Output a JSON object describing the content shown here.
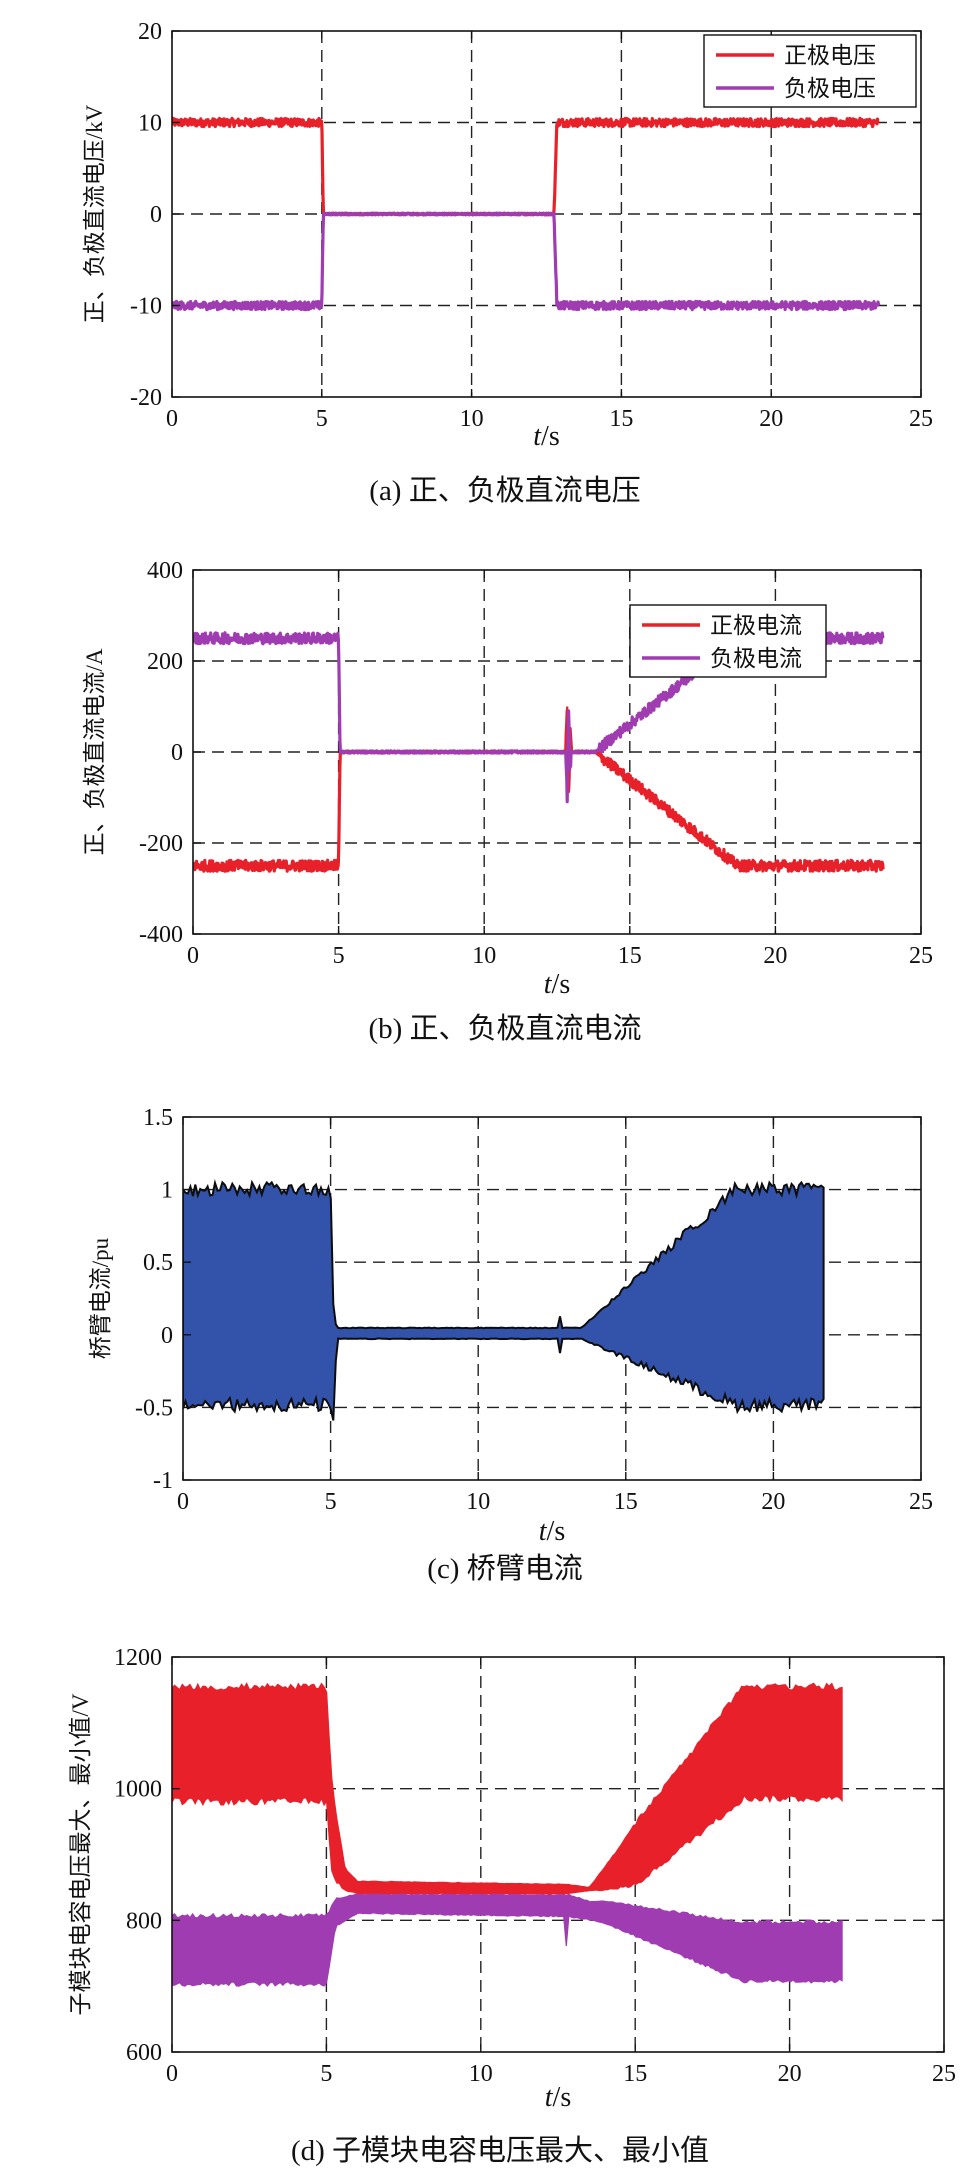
{
  "chart_data": [
    {
      "type": "line",
      "caption": "(a) 正、负极直流电压",
      "ylabel": "正、负极直流电压/kV",
      "xlabel_italic": "t",
      "xlabel_unit": "/s",
      "xlim": [
        0,
        25
      ],
      "ylim": [
        -20,
        20
      ],
      "xticks": [
        "0",
        "5",
        "10",
        "15",
        "20",
        "25"
      ],
      "yticks": [
        "-20",
        "-10",
        "0",
        "10",
        "20"
      ],
      "grid": true,
      "legend_position": "top-right",
      "series": [
        {
          "name": "正极电压",
          "color": "#e8202a",
          "ripple": 0.45,
          "x": [
            0,
            5,
            5.05,
            12.75,
            12.85,
            23.6
          ],
          "y": [
            10,
            10,
            0,
            0,
            10,
            10
          ]
        },
        {
          "name": "负极电压",
          "color": "#a03cb2",
          "ripple": 0.45,
          "x": [
            0,
            5,
            5.05,
            12.75,
            12.85,
            23.6
          ],
          "y": [
            -10,
            -10,
            0,
            0,
            -10,
            -10
          ]
        }
      ]
    },
    {
      "type": "line",
      "caption": "(b) 正、负极直流电流",
      "ylabel": "正、负极直流电流/A",
      "xlabel_italic": "t",
      "xlabel_unit": "/s",
      "xlim": [
        0,
        25
      ],
      "ylim": [
        -400,
        400
      ],
      "xticks": [
        "0",
        "5",
        "10",
        "15",
        "20",
        "25"
      ],
      "yticks": [
        "-400",
        "-200",
        "0",
        "200",
        "400"
      ],
      "grid": true,
      "legend_position": "top-right",
      "series": [
        {
          "name": "正极电流",
          "color": "#e8202a",
          "ripple": 12,
          "x": [
            0,
            5,
            5.05,
            12.8,
            12.85,
            12.9,
            12.95,
            13.0,
            13.8,
            18.7,
            23.7
          ],
          "y": [
            -250,
            -250,
            0,
            0,
            100,
            -90,
            40,
            0,
            0,
            -250,
            -250
          ]
        },
        {
          "name": "负极电流",
          "color": "#a03cb2",
          "ripple": 12,
          "x": [
            0,
            5,
            5.05,
            12.8,
            12.85,
            12.9,
            12.95,
            13.0,
            13.8,
            18.7,
            23.7
          ],
          "y": [
            250,
            250,
            0,
            0,
            -100,
            90,
            -40,
            0,
            0,
            250,
            250
          ]
        }
      ]
    },
    {
      "type": "area",
      "caption": "(c) 桥臂电流",
      "ylabel": "桥臂电流/pu",
      "xlabel_italic": "t",
      "xlabel_unit": "/s",
      "xlim": [
        0,
        25
      ],
      "ylim": [
        -1,
        1.5
      ],
      "xticks": [
        "0",
        "5",
        "10",
        "15",
        "20",
        "25"
      ],
      "yticks": [
        "-1",
        "-0.5",
        "0",
        "0.5",
        "1",
        "1.5"
      ],
      "grid": true,
      "band_color": "#3352aa",
      "band_edge": "#0d0d0d",
      "band_x": [
        0,
        5.0,
        5.1,
        5.2,
        12.7,
        12.75,
        12.8,
        12.9,
        13.5,
        18.7,
        21.7
      ],
      "band_upper": [
        1.05,
        1.05,
        0.15,
        0.05,
        0.05,
        0.2,
        0.05,
        0.05,
        0.05,
        1.05,
        1.05
      ],
      "band_lower": [
        -0.53,
        -0.53,
        -0.65,
        -0.03,
        -0.03,
        -0.2,
        -0.03,
        -0.03,
        -0.03,
        -0.53,
        -0.53
      ]
    },
    {
      "type": "area",
      "caption": "(d) 子模块电容电压最大、最小值",
      "ylabel": "子模块电容电压最大、最小值/V",
      "xlabel_italic": "t",
      "xlabel_unit": "/s",
      "xlim": [
        0,
        25
      ],
      "ylim": [
        600,
        1200
      ],
      "xticks": [
        "0",
        "5",
        "10",
        "15",
        "20",
        "25"
      ],
      "yticks": [
        "600",
        "800",
        "1000",
        "1200"
      ],
      "grid": true,
      "bands": [
        {
          "name": "最大值",
          "color": "#e8202a",
          "x": [
            0,
            5.0,
            5.2,
            5.6,
            6.0,
            12.8,
            13.5,
            14.0,
            15.0,
            18.5,
            21.7
          ],
          "upper": [
            1160,
            1160,
            1000,
            880,
            860,
            855,
            850,
            880,
            950,
            1160,
            1160
          ],
          "lower": [
            975,
            975,
            860,
            845,
            840,
            840,
            845,
            845,
            850,
            980,
            980
          ]
        },
        {
          "name": "最小值",
          "color": "#a03cb2",
          "x": [
            0,
            5.0,
            5.3,
            6.0,
            12.7,
            12.75,
            12.85,
            13.5,
            14.0,
            18.5,
            21.7
          ],
          "upper": [
            810,
            810,
            835,
            840,
            840,
            840,
            840,
            830,
            830,
            800,
            800
          ],
          "lower": [
            700,
            700,
            790,
            810,
            805,
            745,
            805,
            800,
            795,
            705,
            705
          ]
        }
      ]
    }
  ]
}
